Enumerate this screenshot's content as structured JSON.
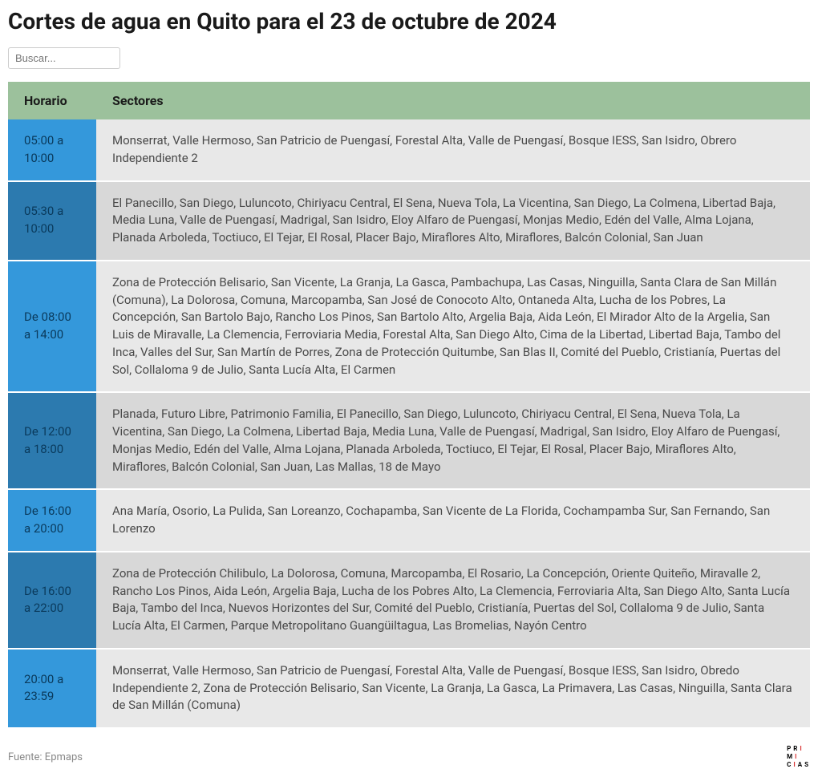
{
  "title": "Cortes de agua en Quito para el 23 de octubre de 2024",
  "search": {
    "placeholder": "Buscar..."
  },
  "table": {
    "headers": {
      "horario": "Horario",
      "sectores": "Sectores"
    },
    "rows": [
      {
        "horario": "05:00 a 10:00",
        "sectores": "Monserrat, Valle Hermoso, San Patricio de Puengasí, Forestal Alta, Valle de Puengasí, Bosque IESS, San Isidro, Obrero Independiente 2"
      },
      {
        "horario": "05:30 a 10:00",
        "sectores": "El Panecillo, San Diego, Luluncoto, Chiriyacu Central, El Sena, Nueva Tola, La Vicentina, San Diego, La Colmena, Libertad Baja, Media Luna, Valle de Puengasí, Madrigal, San Isidro, Eloy Alfaro de Puengasí, Monjas Medio, Edén del Valle, Alma Lojana, Planada Arboleda, Toctiuco, El Tejar, El Rosal, Placer Bajo, Miraflores Alto, Miraflores, Balcón Colonial, San Juan"
      },
      {
        "horario": "De 08:00 a 14:00",
        "sectores": "Zona de Protección Belisario, San Vicente, La Granja, La Gasca, Pambachupa, Las Casas, Ninguilla, Santa Clara de San Millán (Comuna), La Dolorosa, Comuna, Marcopamba, San José de Conocoto Alto, Ontaneda Alta, Lucha de los Pobres, La Concepción, San Bartolo Bajo, Rancho Los Pinos, San Bartolo Alto, Argelia Baja, Aida León, El Mirador Alto de la Argelia, San Luis de Miravalle, La Clemencia, Ferroviaria Media, Forestal Alta, San Diego Alto, Cima de la Libertad, Libertad Baja, Tambo del Inca, Valles del Sur, San Martín de Porres, Zona de Protección Quitumbe, San Blas II, Comité del Pueblo, Cristianía, Puertas del Sol, Collaloma 9 de Julio, Santa Lucía Alta, El Carmen"
      },
      {
        "horario": "De 12:00 a 18:00",
        "sectores": "Planada, Futuro Libre, Patrimonio Familia, El Panecillo, San Diego, Luluncoto, Chiriyacu Central, El Sena, Nueva Tola, La Vicentina, San Diego, La Colmena, Libertad Baja, Media Luna, Valle de Puengasí, Madrigal, San Isidro, Eloy Alfaro de Puengasí, Monjas Medio, Edén del Valle, Alma Lojana, Planada Arboleda, Toctiuco, El Tejar, El Rosal, Placer Bajo, Miraflores Alto, Miraflores, Balcón Colonial, San Juan, Las Mallas, 18 de Mayo"
      },
      {
        "horario": "De 16:00 a 20:00",
        "sectores": "Ana María, Osorio, La Pulida, San Loreanzo, Cochapamba, San Vicente de La Florida, Cochampamba Sur, San Fernando, San Lorenzo"
      },
      {
        "horario": "De 16:00 a 22:00",
        "sectores": "Zona de Protección Chilibulo, La Dolorosa, Comuna, Marcopamba, El Rosario, La Concepción, Oriente Quiteño, Miravalle 2, Rancho Los Pinos, Aida León, Argelia Baja, Lucha de los Pobres Alto, La Clemencia, Ferroviaria Alta, San Diego Alto, Santa Lucía Baja, Tambo del Inca, Nuevos Horizontes del Sur, Comité del Pueblo, Cristianía, Puertas del Sol, Collaloma 9 de Julio, Santa Lucía Alta, El Carmen, Parque Metropolitano Guangüiltagua, Las Bromelias, Nayón Centro"
      },
      {
        "horario": "20:00 a 23:59",
        "sectores": "Monserrat, Valle Hermoso, San Patricio de Puengasí, Forestal Alta, Valle de Puengasí, Bosque IESS, San Isidro, Obredo Independiente 2, Zona de Protección Belisario, San Vicente, La Granja, La Gasca, La Primavera, Las Casas, Ninguilla, Santa Clara de San Millán (Comuna)"
      }
    ]
  },
  "footer": {
    "source": "Fuente: Epmaps",
    "logo_text": "PRIMICIAS"
  },
  "colors": {
    "header_bg": "#9cc19c",
    "time_col_odd": "#3498db",
    "time_col_even": "#2c7aaf",
    "sector_col_odd": "#e8e8e8",
    "sector_col_even": "#d8d8d8",
    "time_text": "#0a3a5c",
    "sector_text": "#4a4a4a",
    "logo_accent": "#d93434"
  }
}
